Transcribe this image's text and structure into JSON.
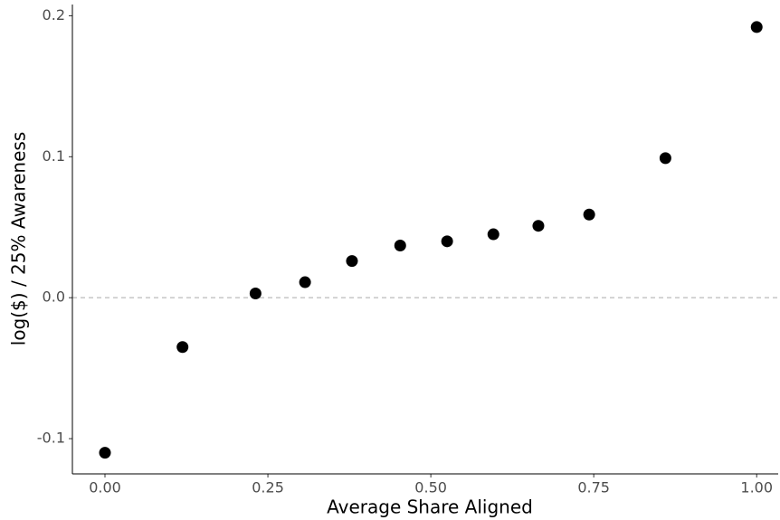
{
  "chart_data": {
    "type": "scatter",
    "x_label": "Average Share Aligned",
    "y_label": "log($) / 25% Awareness",
    "x": [
      0,
      0.119,
      0.231,
      0.307,
      0.379,
      0.453,
      0.525,
      0.596,
      0.665,
      0.743,
      0.86,
      1.0
    ],
    "values": [
      -0.11,
      -0.035,
      0.003,
      0.011,
      0.026,
      0.037,
      0.04,
      0.045,
      0.051,
      0.059,
      0.099,
      0.192
    ],
    "color": "#000000",
    "xlim": [
      -0.05,
      1.033
    ],
    "ylim": [
      -0.125,
      0.208
    ],
    "xticks": [
      {
        "value": 0,
        "label": "0.00"
      },
      {
        "value": 0.25,
        "label": "0.25"
      },
      {
        "value": 0.5,
        "label": "0.50"
      },
      {
        "value": 0.75,
        "label": "0.75"
      },
      {
        "value": 1,
        "label": "1.00"
      }
    ],
    "yticks": [
      -0.1,
      {
        "value": 0,
        "label": "0.0"
      },
      0.1,
      0.2
    ],
    "hline": 0,
    "grid": false
  }
}
